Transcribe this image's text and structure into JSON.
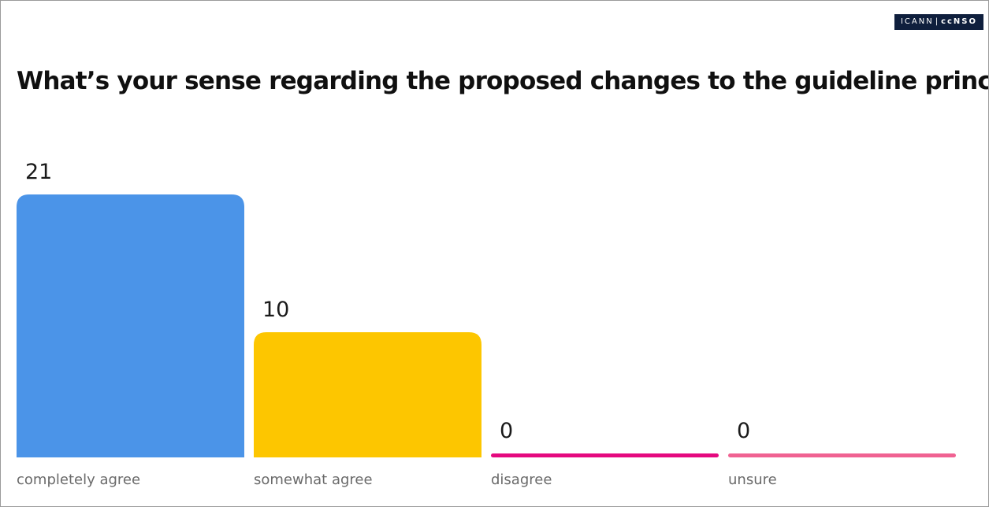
{
  "logo": {
    "left": "ICANN",
    "separator": "|",
    "right": "ccNSO"
  },
  "colors": {
    "completely_agree": "#4b94e8",
    "somewhat_agree": "#fdc600",
    "disagree": "#e5097f",
    "unsure": "#f06292"
  },
  "chart_data": {
    "type": "bar",
    "title": "What’s your sense regarding the proposed changes to the guideline principles?",
    "categories": [
      "completely agree",
      "somewhat agree",
      "disagree",
      "unsure"
    ],
    "values": [
      21,
      10,
      0,
      0
    ],
    "colors": [
      "#4b94e8",
      "#fdc600",
      "#e5097f",
      "#f06292"
    ],
    "xlabel": "",
    "ylabel": "",
    "ylim": [
      0,
      21
    ],
    "grid": false,
    "legend": "none"
  }
}
